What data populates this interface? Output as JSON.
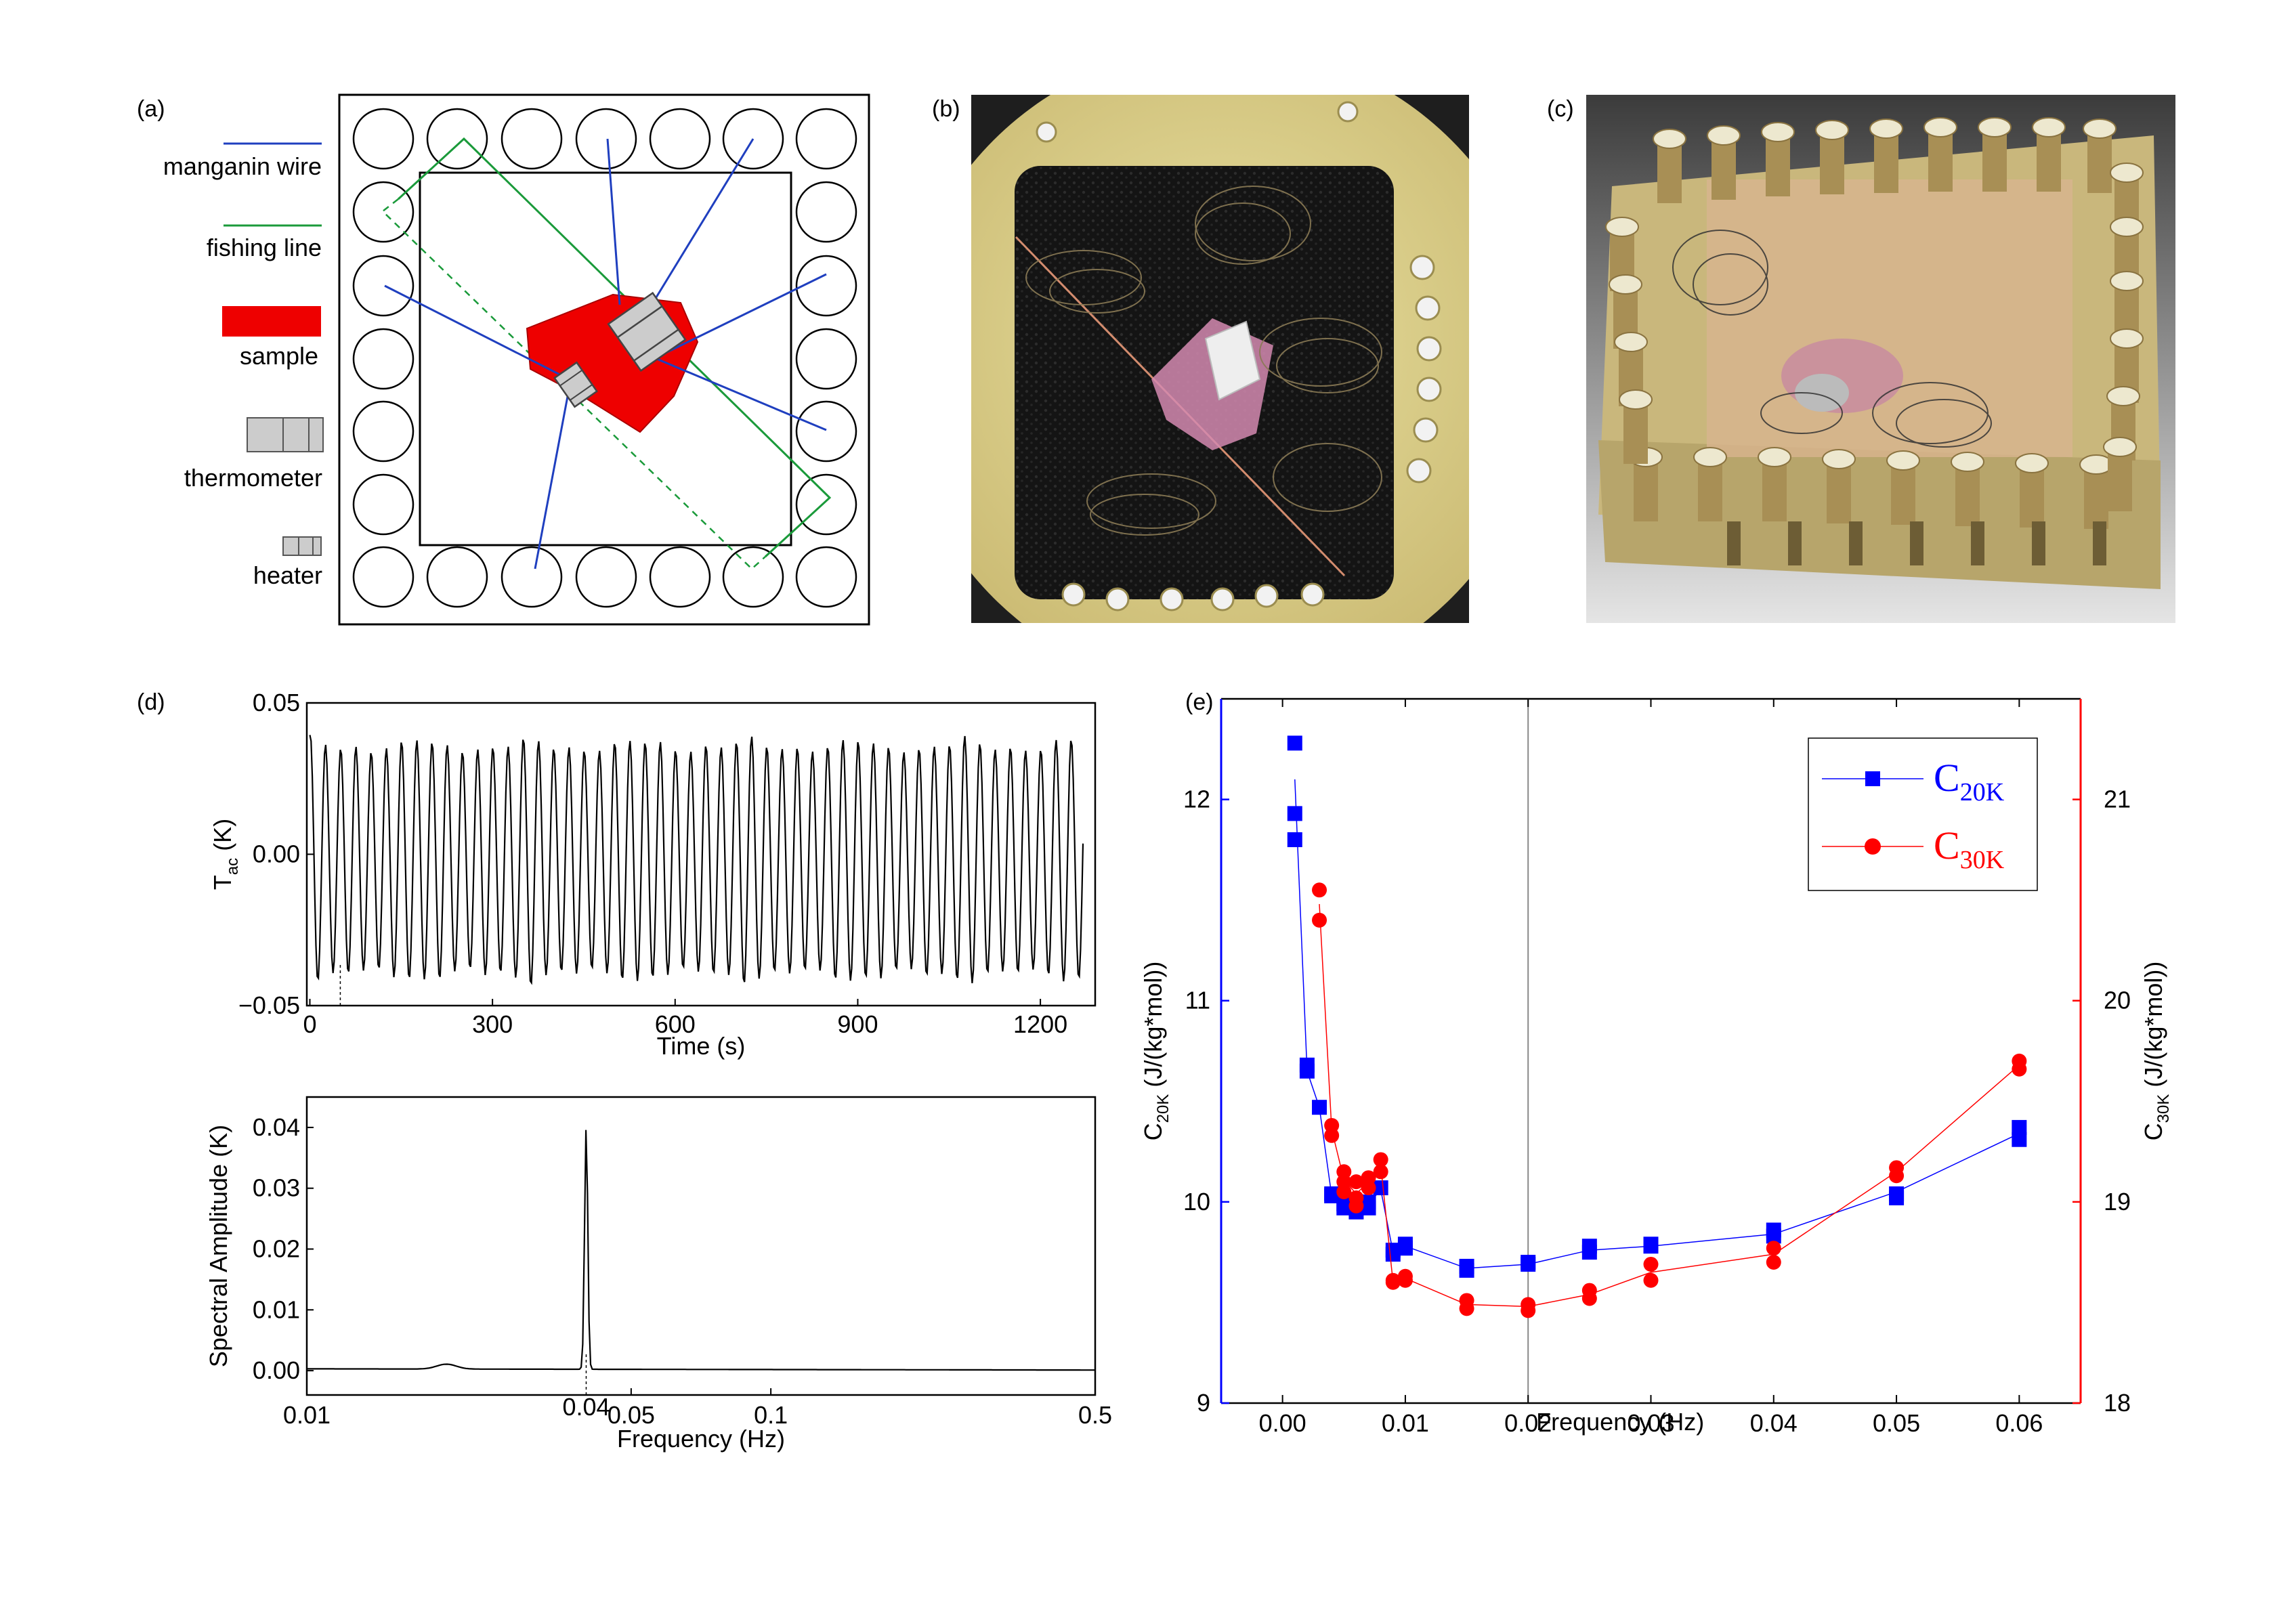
{
  "panels": {
    "a": {
      "label": "(a)",
      "legend": {
        "manganin": "manganin wire",
        "fishing": "fishing line",
        "sample": "sample",
        "thermometer": "thermometer",
        "heater": "heater"
      },
      "colors": {
        "wire": "#1f3fbf",
        "fishing": "#1a9a3a",
        "sample": "#ee0000",
        "device": "#cccccc"
      }
    },
    "b": {
      "label": "(b)"
    },
    "c": {
      "label": "(c)"
    },
    "d": {
      "label": "(d)"
    },
    "e": {
      "label": "(e)"
    }
  },
  "chart_data": [
    {
      "id": "time-trace",
      "type": "line",
      "xlabel": "Time (s)",
      "ylabel": "T_ac (K)",
      "xlim": [
        -5,
        1290
      ],
      "ylim": [
        -0.05,
        0.05
      ],
      "xticks": [
        0,
        300,
        600,
        900,
        1200
      ],
      "yticks": [
        -0.05,
        0.0,
        0.05
      ],
      "ytick_labels": [
        "−0.05",
        "0.00",
        "0.05"
      ],
      "frequency_hz": 0.04,
      "amplitude_k": 0.042,
      "marker_x": 50
    },
    {
      "id": "spectrum",
      "type": "line",
      "xlabel": "Frequency (Hz)",
      "ylabel": "Spectral Amplitude (K)",
      "xscale": "log",
      "xlim": [
        0.01,
        0.5
      ],
      "ylim": [
        -0.004,
        0.045
      ],
      "xticks": [
        0.01,
        0.05,
        0.1,
        0.5
      ],
      "xtick_labels": [
        "0.01",
        "0.05",
        "0.1",
        "0.5"
      ],
      "yticks": [
        0.0,
        0.01,
        0.02,
        0.03,
        0.04
      ],
      "ytick_labels": [
        "0.00",
        "0.01",
        "0.02",
        "0.03",
        "0.04"
      ],
      "peak": {
        "x": 0.04,
        "y": 0.04,
        "label": "0.04"
      }
    },
    {
      "id": "heat-capacity",
      "type": "scatter",
      "xlabel": "Frequency (Hz)",
      "xlim": [
        -0.005,
        0.065
      ],
      "xticks": [
        0.0,
        0.01,
        0.02,
        0.03,
        0.04,
        0.05,
        0.06
      ],
      "xtick_labels": [
        "0.00",
        "0.01",
        "0.02",
        "0.03",
        "0.04",
        "0.05",
        "0.06"
      ],
      "vline_x": 0.02,
      "left_axis": {
        "label_main": "C",
        "label_sub": "20K",
        "label_rest": " (J/(kg*mol))",
        "ylim": [
          9,
          12.5
        ],
        "yticks": [
          9,
          10,
          11,
          12
        ],
        "color": "#0000ff"
      },
      "right_axis": {
        "label_main": "C",
        "label_sub": "30K",
        "label_rest": " (J/(kg*mol))",
        "ylim": [
          18,
          21.5
        ],
        "yticks": [
          18,
          19,
          20,
          21
        ],
        "color": "#ff0000"
      },
      "legend_placement": "top-right",
      "series": [
        {
          "name_main": "C",
          "name_sub": "20K",
          "axis": "left",
          "color": "#0000ff",
          "marker": "square",
          "line": [
            [
              0.001,
              12.1
            ],
            [
              0.002,
              10.65
            ],
            [
              0.003,
              10.47
            ],
            [
              0.004,
              10.03
            ],
            [
              0.005,
              9.98
            ],
            [
              0.006,
              9.97
            ],
            [
              0.007,
              9.99
            ],
            [
              0.008,
              10.06
            ],
            [
              0.009,
              9.75
            ],
            [
              0.01,
              9.78
            ],
            [
              0.015,
              9.67
            ],
            [
              0.02,
              9.69
            ],
            [
              0.025,
              9.76
            ],
            [
              0.03,
              9.78
            ],
            [
              0.04,
              9.84
            ],
            [
              0.05,
              10.05
            ],
            [
              0.06,
              10.34
            ]
          ],
          "points": [
            [
              0.001,
              12.28
            ],
            [
              0.001,
              11.93
            ],
            [
              0.001,
              11.8
            ],
            [
              0.002,
              10.68
            ],
            [
              0.002,
              10.65
            ],
            [
              0.003,
              10.47
            ],
            [
              0.004,
              10.04
            ],
            [
              0.004,
              10.03
            ],
            [
              0.005,
              9.99
            ],
            [
              0.005,
              9.97
            ],
            [
              0.006,
              9.97
            ],
            [
              0.006,
              9.95
            ],
            [
              0.007,
              10.0
            ],
            [
              0.007,
              9.97
            ],
            [
              0.008,
              10.07
            ],
            [
              0.009,
              9.76
            ],
            [
              0.009,
              9.74
            ],
            [
              0.01,
              9.79
            ],
            [
              0.01,
              9.77
            ],
            [
              0.015,
              9.68
            ],
            [
              0.015,
              9.66
            ],
            [
              0.02,
              9.7
            ],
            [
              0.02,
              9.69
            ],
            [
              0.025,
              9.78
            ],
            [
              0.025,
              9.75
            ],
            [
              0.03,
              9.79
            ],
            [
              0.03,
              9.78
            ],
            [
              0.04,
              9.86
            ],
            [
              0.04,
              9.83
            ],
            [
              0.05,
              10.04
            ],
            [
              0.05,
              10.02
            ],
            [
              0.06,
              10.37
            ],
            [
              0.06,
              10.31
            ]
          ]
        },
        {
          "name_main": "C",
          "name_sub": "30K",
          "axis": "right",
          "color": "#ff0000",
          "marker": "circle",
          "line": [
            [
              0.003,
              20.48
            ],
            [
              0.004,
              19.36
            ],
            [
              0.005,
              19.11
            ],
            [
              0.006,
              19.04
            ],
            [
              0.007,
              19.1
            ],
            [
              0.008,
              19.18
            ],
            [
              0.009,
              18.6
            ],
            [
              0.01,
              18.62
            ],
            [
              0.015,
              18.49
            ],
            [
              0.02,
              18.48
            ],
            [
              0.025,
              18.54
            ],
            [
              0.03,
              18.65
            ],
            [
              0.04,
              18.74
            ],
            [
              0.05,
              19.15
            ],
            [
              0.06,
              19.68
            ]
          ],
          "points": [
            [
              0.003,
              20.55
            ],
            [
              0.003,
              20.4
            ],
            [
              0.004,
              19.38
            ],
            [
              0.004,
              19.33
            ],
            [
              0.005,
              19.15
            ],
            [
              0.005,
              19.1
            ],
            [
              0.005,
              19.05
            ],
            [
              0.006,
              19.1
            ],
            [
              0.006,
              19.02
            ],
            [
              0.006,
              18.98
            ],
            [
              0.007,
              19.12
            ],
            [
              0.007,
              19.07
            ],
            [
              0.008,
              19.21
            ],
            [
              0.008,
              19.15
            ],
            [
              0.009,
              18.61
            ],
            [
              0.009,
              18.6
            ],
            [
              0.01,
              18.63
            ],
            [
              0.01,
              18.61
            ],
            [
              0.015,
              18.51
            ],
            [
              0.015,
              18.47
            ],
            [
              0.02,
              18.49
            ],
            [
              0.02,
              18.46
            ],
            [
              0.025,
              18.56
            ],
            [
              0.025,
              18.52
            ],
            [
              0.03,
              18.69
            ],
            [
              0.03,
              18.61
            ],
            [
              0.04,
              18.77
            ],
            [
              0.04,
              18.7
            ],
            [
              0.05,
              19.17
            ],
            [
              0.05,
              19.13
            ],
            [
              0.06,
              19.7
            ],
            [
              0.06,
              19.66
            ]
          ]
        }
      ]
    }
  ]
}
